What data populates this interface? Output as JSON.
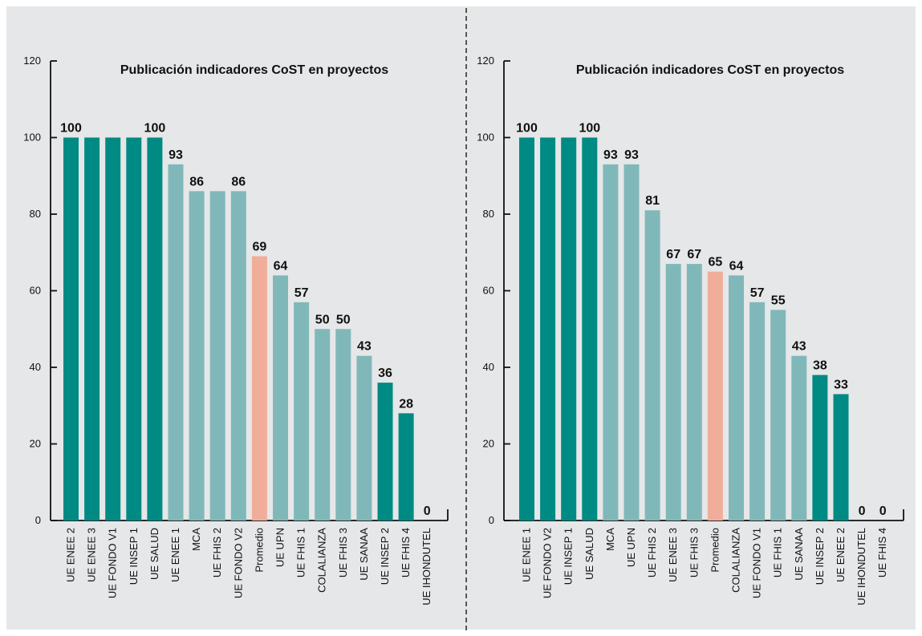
{
  "colors": {
    "background": "#e6e7e8",
    "dark_teal": "#008a84",
    "light_teal": "#80b8ba",
    "average": "#f0ae9a",
    "divider": "#333333"
  },
  "chart_data": [
    {
      "type": "bar",
      "title": "Publicación indicadores CoST en proyectos",
      "xlabel": "",
      "ylabel": "",
      "ylim": [
        0,
        120
      ],
      "yticks": [
        "0",
        "20",
        "40",
        "60",
        "80",
        "100",
        "120"
      ],
      "categories": [
        "UE ENEE 2",
        "UE ENEE 3",
        "UE FONDO V1",
        "UE INSEP 1",
        "UE SALUD",
        "UE ENEE 1",
        "MCA",
        "UE FHIS 2",
        "UE FONDO V2",
        "Promedio",
        "UE UPN",
        "UE FHIS 1",
        "COLALIANZA",
        "UE FHIS 3",
        "UE SANAA",
        "UE INSEP 2",
        "UE FHIS 4",
        "UE IHONDUTEL"
      ],
      "values": [
        100,
        100,
        100,
        100,
        100,
        93,
        86,
        86,
        86,
        69,
        64,
        57,
        50,
        50,
        43,
        36,
        28,
        0
      ],
      "value_labels": [
        "100",
        "",
        "",
        "",
        "100",
        "93",
        "86",
        "",
        "86",
        "69",
        "64",
        "57",
        "50",
        "50",
        "43",
        "36",
        "28",
        "0"
      ],
      "bar_colors": [
        "dark",
        "dark",
        "dark",
        "dark",
        "dark",
        "light",
        "light",
        "light",
        "light",
        "avg",
        "light",
        "light",
        "light",
        "light",
        "light",
        "dark",
        "dark",
        "dark"
      ]
    },
    {
      "type": "bar",
      "title": "Publicación indicadores CoST en proyectos",
      "xlabel": "",
      "ylabel": "",
      "ylim": [
        0,
        120
      ],
      "yticks": [
        "0",
        "20",
        "40",
        "60",
        "80",
        "100",
        "120"
      ],
      "categories": [
        "UE ENEE 1",
        "UE FONDO V2",
        "UE INSEP 1",
        "UE SALUD",
        "MCA",
        "UE UPN",
        "UE FHIS 2",
        "UE ENEE 3",
        "UE FHIS 3",
        "Promedio",
        "COLALIANZA",
        "UE FONDO V1",
        "UE FHIS 1",
        "UE SANAA",
        "UE INSEP 2",
        "UE ENEE 2",
        "UE IHONDUTEL",
        "UE FHIS 4"
      ],
      "values": [
        100,
        100,
        100,
        100,
        93,
        93,
        81,
        67,
        67,
        65,
        64,
        57,
        55,
        43,
        38,
        33,
        0,
        0
      ],
      "value_labels": [
        "100",
        "",
        "",
        "100",
        "93",
        "93",
        "81",
        "67",
        "67",
        "65",
        "64",
        "57",
        "55",
        "43",
        "38",
        "33",
        "0",
        "0"
      ],
      "bar_colors": [
        "dark",
        "dark",
        "dark",
        "dark",
        "light",
        "light",
        "light",
        "light",
        "light",
        "avg",
        "light",
        "light",
        "light",
        "light",
        "dark",
        "dark",
        "dark",
        "dark"
      ]
    }
  ]
}
